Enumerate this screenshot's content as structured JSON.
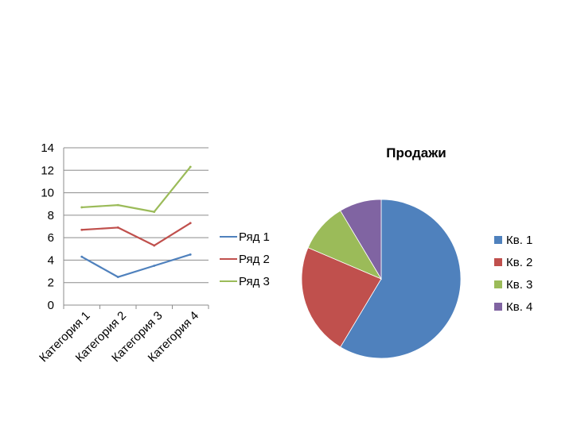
{
  "chart_data": [
    {
      "type": "line",
      "categories": [
        "Категория 1",
        "Категория 2",
        "Категория 3",
        "Категория 4"
      ],
      "series": [
        {
          "name": "Ряд 1",
          "values": [
            4.3,
            2.5,
            3.5,
            4.5
          ],
          "color": "#4f81bd"
        },
        {
          "name": "Ряд 2",
          "values": [
            6.7,
            6.9,
            5.3,
            7.3
          ],
          "color": "#c0504d"
        },
        {
          "name": "Ряд 3",
          "values": [
            8.7,
            8.9,
            8.3,
            12.3
          ],
          "color": "#9bbb59"
        }
      ],
      "yticks": [
        "0",
        "2",
        "4",
        "6",
        "8",
        "10",
        "12",
        "14"
      ],
      "ylim": [
        0,
        14
      ],
      "grid": true,
      "legend": "right"
    },
    {
      "type": "pie",
      "title": "Продажи",
      "categories": [
        "Кв. 1",
        "Кв. 2",
        "Кв. 3",
        "Кв. 4"
      ],
      "values": [
        8.2,
        3.2,
        1.4,
        1.2
      ],
      "colors": [
        "#4f81bd",
        "#c0504d",
        "#9bbb59",
        "#8064a2"
      ],
      "legend": "right"
    }
  ]
}
